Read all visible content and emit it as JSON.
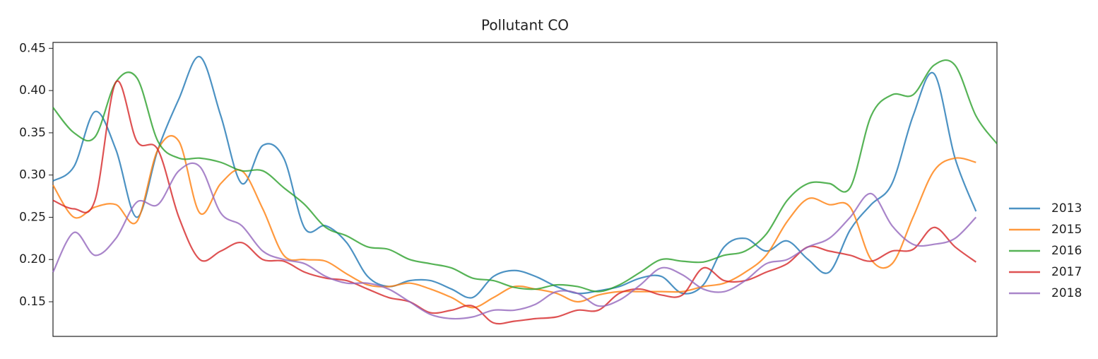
{
  "chart_data": {
    "type": "line",
    "title": "Pollutant CO",
    "ylim": [
      0.109,
      0.457
    ],
    "yticks": [
      0.15,
      {
        "value": 0.2,
        "label": "0.20"
      },
      0.25,
      {
        "value": 0.3,
        "label": "0.30"
      },
      0.35,
      {
        "value": 0.4,
        "label": "0.40"
      },
      0.45
    ],
    "series": [
      {
        "name": "2013",
        "color": "#1f77b4",
        "values": [
          0.293,
          0.31,
          0.375,
          0.33,
          0.25,
          0.33,
          0.39,
          0.44,
          0.37,
          0.29,
          0.335,
          0.32,
          0.237,
          0.24,
          0.22,
          0.18,
          0.168,
          0.175,
          0.175,
          0.165,
          0.155,
          0.18,
          0.187,
          0.18,
          0.168,
          0.16,
          0.163,
          0.168,
          0.178,
          0.18,
          0.16,
          0.17,
          0.215,
          0.225,
          0.21,
          0.222,
          0.2,
          0.185,
          0.235,
          0.265,
          0.29,
          0.37,
          0.42,
          0.32,
          0.257,
          null
        ]
      },
      {
        "name": "2015",
        "color": "#ff7f0e",
        "values": [
          0.288,
          0.25,
          0.262,
          0.265,
          0.245,
          0.33,
          0.34,
          0.255,
          0.29,
          0.305,
          0.26,
          0.205,
          0.2,
          0.198,
          0.183,
          0.17,
          0.168,
          0.172,
          0.165,
          0.155,
          0.143,
          0.155,
          0.168,
          0.165,
          0.16,
          0.15,
          0.158,
          0.162,
          0.162,
          0.162,
          0.162,
          0.168,
          0.172,
          0.185,
          0.205,
          0.245,
          0.272,
          0.265,
          0.262,
          0.2,
          0.195,
          0.25,
          0.305,
          0.32,
          0.315,
          null
        ]
      },
      {
        "name": "2016",
        "color": "#2ca02c",
        "values": [
          0.38,
          0.35,
          0.345,
          0.41,
          0.415,
          0.34,
          0.32,
          0.32,
          0.315,
          0.305,
          0.305,
          0.285,
          0.265,
          0.238,
          0.228,
          0.215,
          0.212,
          0.2,
          0.195,
          0.19,
          0.178,
          0.175,
          0.167,
          0.165,
          0.17,
          0.168,
          0.162,
          0.17,
          0.185,
          0.2,
          0.198,
          0.197,
          0.205,
          0.21,
          0.23,
          0.27,
          0.29,
          0.29,
          0.285,
          0.37,
          0.395,
          0.395,
          0.43,
          0.43,
          0.37,
          0.337
        ]
      },
      {
        "name": "2017",
        "color": "#d62728",
        "values": [
          0.27,
          0.26,
          0.27,
          0.41,
          0.34,
          0.33,
          0.25,
          0.2,
          0.21,
          0.22,
          0.2,
          0.198,
          0.185,
          0.178,
          0.175,
          0.165,
          0.155,
          0.15,
          0.137,
          0.14,
          0.145,
          0.125,
          0.127,
          0.13,
          0.132,
          0.14,
          0.14,
          0.16,
          0.165,
          0.158,
          0.158,
          0.19,
          0.175,
          0.175,
          0.185,
          0.195,
          0.215,
          0.21,
          0.205,
          0.198,
          0.21,
          0.212,
          0.238,
          0.215,
          0.197,
          null
        ]
      },
      {
        "name": "2018",
        "color": "#9467bd",
        "values": [
          0.185,
          0.232,
          0.205,
          0.225,
          0.268,
          0.265,
          0.305,
          0.31,
          0.255,
          0.24,
          0.21,
          0.2,
          0.195,
          0.18,
          0.172,
          0.172,
          0.165,
          0.15,
          0.135,
          0.13,
          0.132,
          0.14,
          0.14,
          0.147,
          0.162,
          0.16,
          0.145,
          0.152,
          0.17,
          0.19,
          0.182,
          0.165,
          0.162,
          0.175,
          0.195,
          0.2,
          0.215,
          0.225,
          0.25,
          0.278,
          0.24,
          0.218,
          0.218,
          0.225,
          0.25,
          null
        ]
      }
    ]
  }
}
